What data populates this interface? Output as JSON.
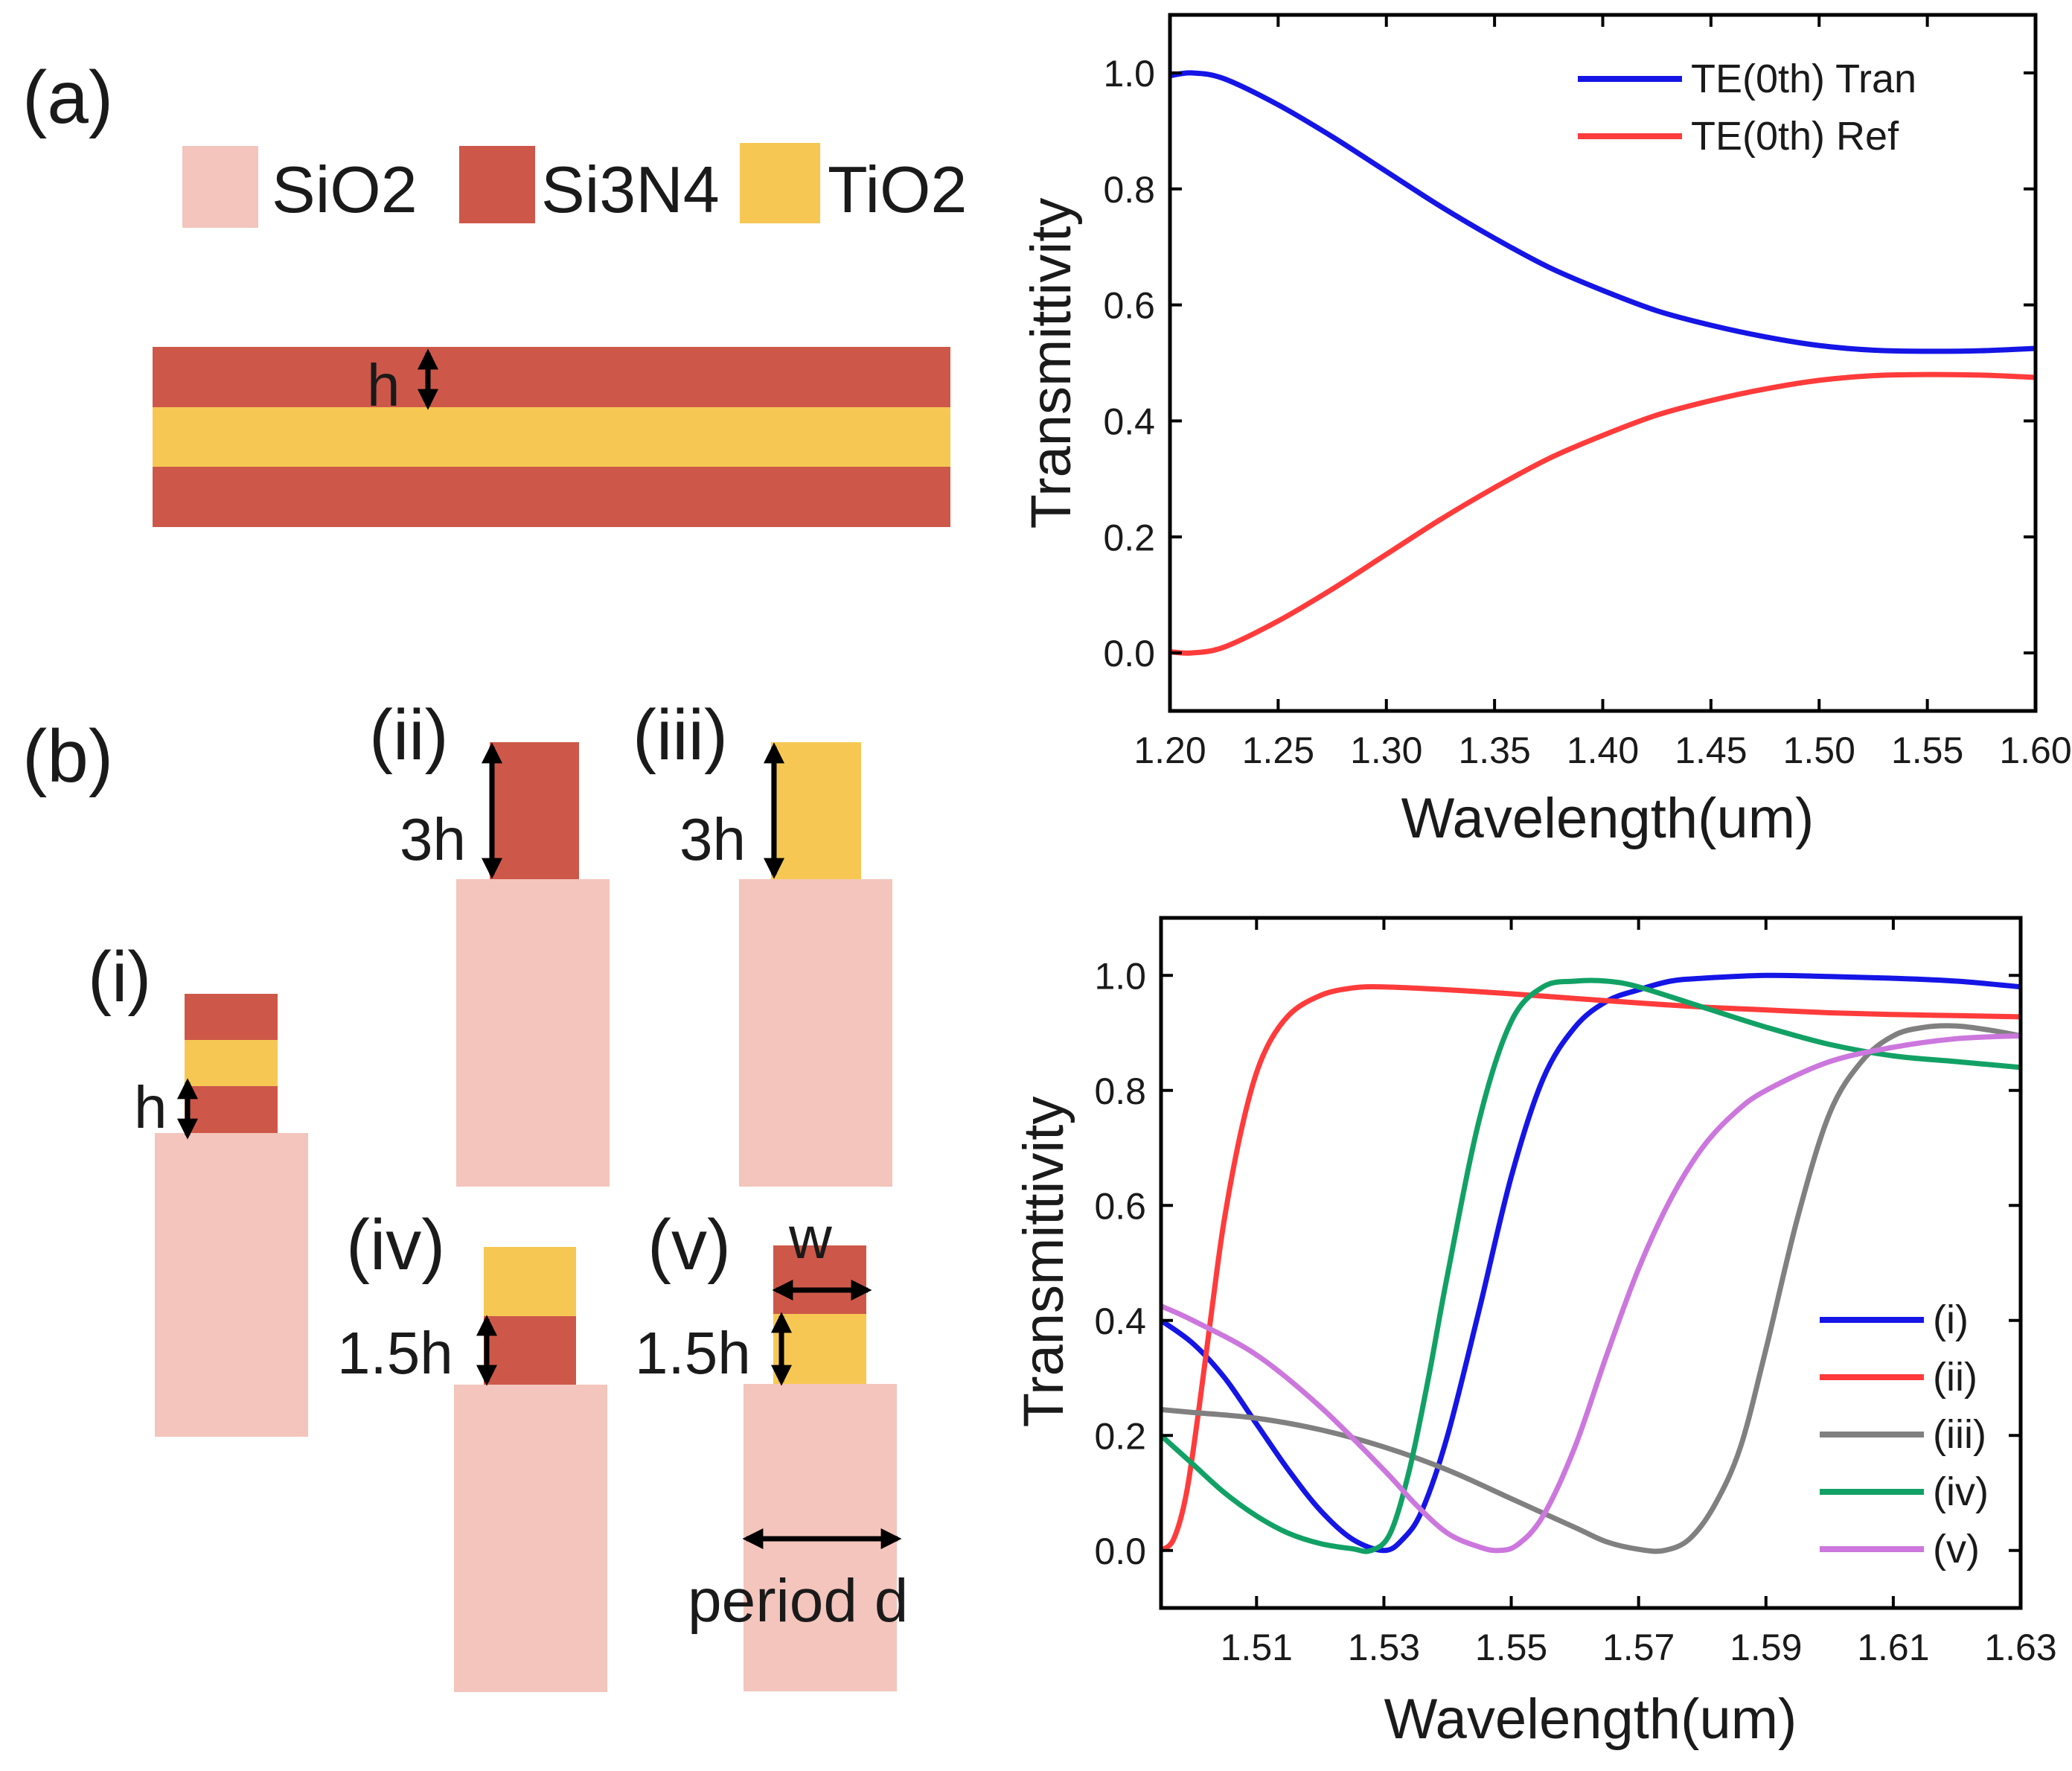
{
  "diagram": {
    "panel_a_label": "(a)",
    "panel_b_label": "(b)",
    "legend": [
      {
        "label": "SiO2",
        "color": "#f3c5bc"
      },
      {
        "label": "Si3N4",
        "color": "#cd5849"
      },
      {
        "label": "TiO2",
        "color": "#f6c853"
      }
    ],
    "h_label": "h",
    "structures": {
      "i": {
        "label": "(i)",
        "h_label": "h"
      },
      "ii": {
        "label": "(ii)",
        "dim_label": "3h"
      },
      "iii": {
        "label": "(iii)",
        "dim_label": "3h"
      },
      "iv": {
        "label": "(iv)",
        "dim_label": "1.5h"
      },
      "v": {
        "label": "(v)",
        "dim_label": "1.5h",
        "w_label": "w",
        "period_label": "period d"
      }
    }
  },
  "chart_data": [
    {
      "type": "line",
      "xlabel": "Wavelength(um)",
      "ylabel": "Transmittivity",
      "xlim": [
        1.2,
        1.6
      ],
      "ylim": [
        -0.1,
        1.1
      ],
      "xticks": [
        "1.20",
        "1.25",
        "1.30",
        "1.35",
        "1.40",
        "1.45",
        "1.50",
        "1.55",
        "1.60"
      ],
      "xtick_values": [
        1.2,
        1.25,
        1.3,
        1.35,
        1.4,
        1.45,
        1.5,
        1.55,
        1.6
      ],
      "yticks": [
        "0.0",
        "0.2",
        "0.4",
        "0.6",
        "0.8",
        "1.0"
      ],
      "ytick_values": [
        0,
        0.2,
        0.4,
        0.6,
        0.8,
        1.0
      ],
      "legend_position": "top-right",
      "series": [
        {
          "name": "TE(0th) Tran",
          "color": "#1515e6",
          "x": [
            1.2,
            1.21,
            1.225,
            1.25,
            1.275,
            1.3,
            1.325,
            1.35,
            1.375,
            1.4,
            1.425,
            1.45,
            1.475,
            1.5,
            1.525,
            1.55,
            1.575,
            1.6
          ],
          "y": [
            0.995,
            1.0,
            0.99,
            0.945,
            0.89,
            0.83,
            0.77,
            0.715,
            0.665,
            0.625,
            0.59,
            0.565,
            0.545,
            0.53,
            0.522,
            0.52,
            0.521,
            0.525
          ]
        },
        {
          "name": "TE(0th) Ref",
          "color": "#ff3b3b",
          "x": [
            1.2,
            1.21,
            1.225,
            1.25,
            1.275,
            1.3,
            1.325,
            1.35,
            1.375,
            1.4,
            1.425,
            1.45,
            1.475,
            1.5,
            1.525,
            1.55,
            1.575,
            1.6
          ],
          "y": [
            0.002,
            0.0,
            0.01,
            0.055,
            0.11,
            0.17,
            0.23,
            0.285,
            0.335,
            0.375,
            0.41,
            0.435,
            0.455,
            0.47,
            0.478,
            0.48,
            0.479,
            0.475
          ]
        }
      ]
    },
    {
      "type": "line",
      "xlabel": "Wavelength(um)",
      "ylabel": "Transmittivity",
      "xlim": [
        1.495,
        1.63
      ],
      "ylim": [
        -0.1,
        1.1
      ],
      "xticks": [
        "1.51",
        "1.53",
        "1.55",
        "1.57",
        "1.59",
        "1.61",
        "1.63"
      ],
      "xtick_values": [
        1.51,
        1.53,
        1.55,
        1.57,
        1.59,
        1.61,
        1.63
      ],
      "yticks": [
        "0.0",
        "0.2",
        "0.4",
        "0.6",
        "0.8",
        "1.0"
      ],
      "ytick_values": [
        0,
        0.2,
        0.4,
        0.6,
        0.8,
        1.0
      ],
      "legend_position": "bottom-right",
      "series": [
        {
          "name": "(i)",
          "color": "#1515e6",
          "x": [
            1.495,
            1.5,
            1.505,
            1.51,
            1.515,
            1.52,
            1.525,
            1.53,
            1.533,
            1.536,
            1.54,
            1.545,
            1.55,
            1.555,
            1.56,
            1.565,
            1.57,
            1.575,
            1.58,
            1.59,
            1.6,
            1.61,
            1.62,
            1.63
          ],
          "y": [
            0.4,
            0.36,
            0.3,
            0.22,
            0.14,
            0.07,
            0.02,
            0.0,
            0.02,
            0.07,
            0.2,
            0.42,
            0.65,
            0.82,
            0.91,
            0.955,
            0.975,
            0.99,
            0.995,
            1.0,
            0.998,
            0.995,
            0.99,
            0.98
          ]
        },
        {
          "name": "(ii)",
          "color": "#ff3b3b",
          "x": [
            1.495,
            1.497,
            1.499,
            1.501,
            1.503,
            1.505,
            1.508,
            1.511,
            1.515,
            1.52,
            1.525,
            1.53,
            1.54,
            1.55,
            1.56,
            1.57,
            1.58,
            1.59,
            1.6,
            1.61,
            1.62,
            1.63
          ],
          "y": [
            0.0,
            0.02,
            0.1,
            0.25,
            0.42,
            0.58,
            0.75,
            0.86,
            0.93,
            0.965,
            0.978,
            0.98,
            0.975,
            0.968,
            0.96,
            0.952,
            0.945,
            0.94,
            0.935,
            0.932,
            0.93,
            0.928
          ]
        },
        {
          "name": "(iii)",
          "color": "#808080",
          "x": [
            1.495,
            1.5,
            1.51,
            1.52,
            1.53,
            1.54,
            1.55,
            1.56,
            1.565,
            1.57,
            1.574,
            1.578,
            1.582,
            1.586,
            1.59,
            1.595,
            1.6,
            1.605,
            1.61,
            1.615,
            1.62,
            1.625,
            1.63
          ],
          "y": [
            0.245,
            0.24,
            0.23,
            0.21,
            0.18,
            0.14,
            0.09,
            0.04,
            0.015,
            0.002,
            0.0,
            0.02,
            0.08,
            0.18,
            0.35,
            0.58,
            0.76,
            0.85,
            0.895,
            0.91,
            0.912,
            0.905,
            0.895
          ]
        },
        {
          "name": "(iv)",
          "color": "#12a165",
          "x": [
            1.495,
            1.5,
            1.505,
            1.51,
            1.515,
            1.52,
            1.525,
            1.528,
            1.531,
            1.534,
            1.537,
            1.54,
            1.545,
            1.55,
            1.555,
            1.56,
            1.565,
            1.57,
            1.58,
            1.59,
            1.6,
            1.61,
            1.62,
            1.63
          ],
          "y": [
            0.2,
            0.15,
            0.1,
            0.06,
            0.03,
            0.012,
            0.003,
            0.0,
            0.03,
            0.14,
            0.3,
            0.48,
            0.75,
            0.92,
            0.98,
            0.99,
            0.99,
            0.98,
            0.945,
            0.91,
            0.88,
            0.86,
            0.85,
            0.84
          ]
        },
        {
          "name": "(v)",
          "color": "#cc77dd",
          "x": [
            1.495,
            1.5,
            1.51,
            1.52,
            1.53,
            1.535,
            1.54,
            1.545,
            1.548,
            1.551,
            1.555,
            1.56,
            1.565,
            1.57,
            1.575,
            1.58,
            1.585,
            1.59,
            1.6,
            1.61,
            1.62,
            1.63
          ],
          "y": [
            0.425,
            0.4,
            0.34,
            0.25,
            0.14,
            0.08,
            0.03,
            0.006,
            0.0,
            0.01,
            0.06,
            0.18,
            0.34,
            0.49,
            0.61,
            0.7,
            0.76,
            0.8,
            0.85,
            0.875,
            0.89,
            0.895
          ]
        }
      ]
    }
  ]
}
